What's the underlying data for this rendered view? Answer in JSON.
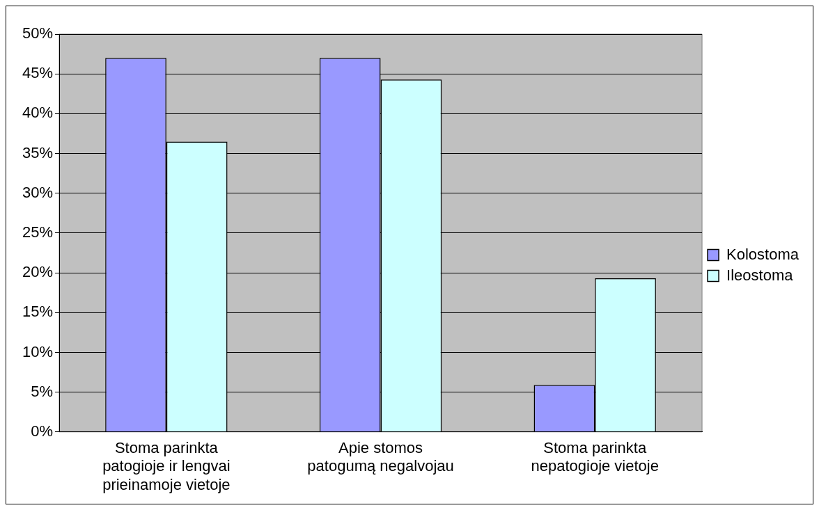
{
  "chart_data": {
    "type": "bar",
    "categories": [
      "Stoma parinkta\npatogioje ir lengvai\nprieinamoje vietoje",
      "Apie stomos\npatogumą negalvojau",
      "Stoma parinkta\nnepatogioje vietoje"
    ],
    "series": [
      {
        "name": "Kolostoma",
        "color": "#9999ff",
        "values": [
          47,
          47,
          5.9
        ]
      },
      {
        "name": "Ileostoma",
        "color": "#ccffff",
        "values": [
          36.5,
          44.3,
          19.3
        ]
      }
    ],
    "ylim": [
      0,
      50
    ],
    "yticks": [
      {
        "value": 0,
        "label": "0%"
      },
      {
        "value": 5,
        "label": "5%"
      },
      {
        "value": 10,
        "label": "10%"
      },
      {
        "value": 15,
        "label": "15%"
      },
      {
        "value": 20,
        "label": "20%"
      },
      {
        "value": 25,
        "label": "25%"
      },
      {
        "value": 30,
        "label": "30%"
      },
      {
        "value": 35,
        "label": "35%"
      },
      {
        "value": 40,
        "label": "40%"
      },
      {
        "value": 45,
        "label": "45%"
      },
      {
        "value": 50,
        "label": "50%"
      }
    ],
    "grid": "y",
    "legend": "right"
  }
}
